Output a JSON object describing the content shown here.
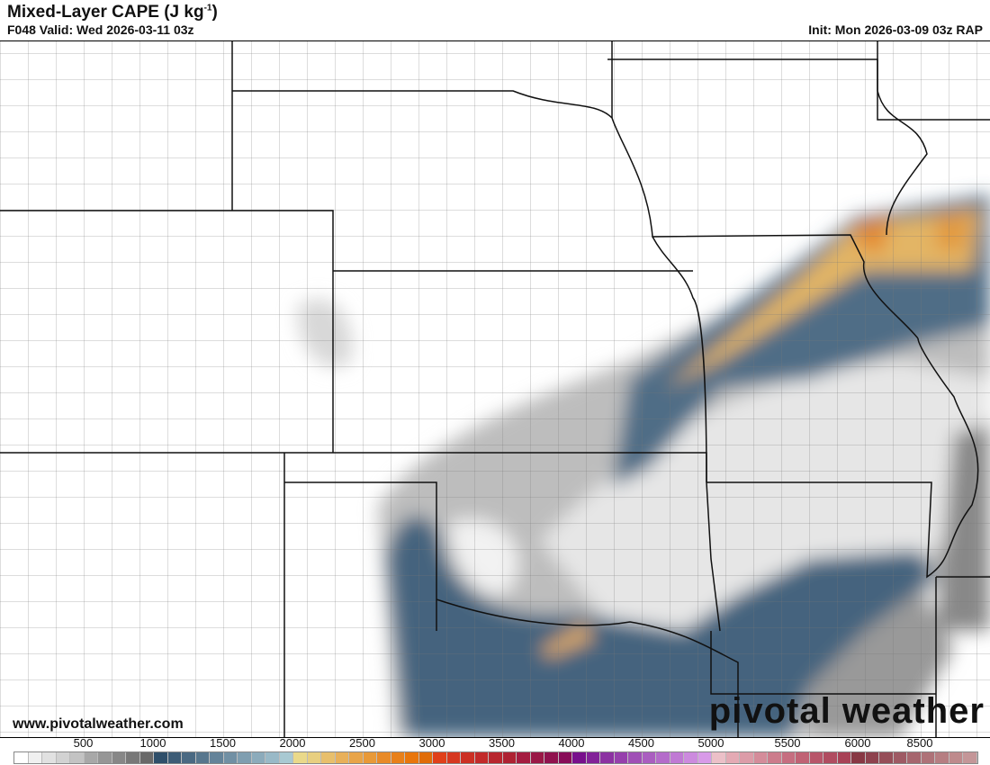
{
  "header": {
    "title": "Mixed-Layer CAPE (J kg",
    "title_sup": "-1",
    "title_end": ")",
    "valid": "F048 Valid: Wed 2026-03-11 03z",
    "init": "Init: Mon 2026-03-09 03z RAP"
  },
  "footer": {
    "website": "www.pivotalweather.com",
    "logo": "pivotal weather",
    "logo_icon": "gear-icon"
  },
  "colorbar": {
    "ticks": [
      "500",
      "1000",
      "1500",
      "2000",
      "2500",
      "3000",
      "3500",
      "4000",
      "4500",
      "5000",
      "5500",
      "6000",
      "8500"
    ],
    "colors": [
      "#ffffff",
      "#f0f0f0",
      "#e1e1e1",
      "#d2d2d2",
      "#c3c3c3",
      "#a8a8a8",
      "#969696",
      "#878787",
      "#787878",
      "#696969",
      "#2f4f6a",
      "#3d5c76",
      "#4a6982",
      "#57768d",
      "#648399",
      "#7190a4",
      "#7f9eb0",
      "#8cabbb",
      "#99b9c7",
      "#a8c9d2",
      "#ead98a",
      "#e8cf80",
      "#e8bf6c",
      "#e8b05a",
      "#e8a448",
      "#e89938",
      "#e88a28",
      "#e8801a",
      "#e8760c",
      "#e06c08",
      "#e0401a",
      "#d63820",
      "#cc3024",
      "#c22a2a",
      "#b8262e",
      "#ae2232",
      "#a41c40",
      "#9a1846",
      "#90124e",
      "#880c58",
      "#78108c",
      "#822298",
      "#8c32a2",
      "#9640ac",
      "#a050b6",
      "#aa5ec0",
      "#b46cca",
      "#c07ad4",
      "#cc8ade",
      "#d89ae8",
      "#ecc0c8",
      "#e4aab4",
      "#dc9ca8",
      "#d48c9a",
      "#cc7c8c",
      "#c66e80",
      "#c06274",
      "#b8566a",
      "#b04c60",
      "#a84256",
      "#883844",
      "#8e424e",
      "#964e58",
      "#9e5a64",
      "#a6666e",
      "#ae7278",
      "#b67e82",
      "#be8a8c",
      "#c49698"
    ]
  }
}
